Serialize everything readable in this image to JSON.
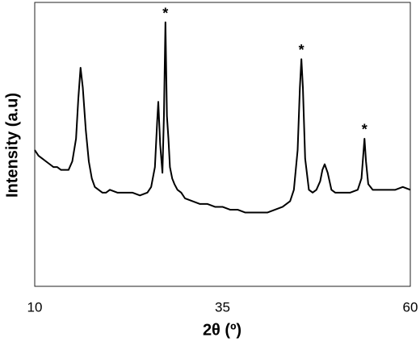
{
  "chart_data": {
    "type": "line",
    "xlabel": "2θ (º)",
    "ylabel": "Intensity (a.u)",
    "x": [
      10,
      10.5,
      11,
      11.5,
      12,
      12.5,
      13,
      13.5,
      14,
      14.5,
      15,
      15.5,
      15.8,
      16.1,
      16.4,
      16.8,
      17.2,
      17.6,
      18,
      18.5,
      19,
      19.5,
      20,
      21,
      22,
      23,
      24,
      25,
      25.5,
      26,
      26.3,
      26.45,
      26.7,
      27,
      27.2,
      27.4,
      27.6,
      27.8,
      28,
      28.3,
      28.6,
      29,
      29.5,
      30,
      31,
      32,
      33,
      34,
      35,
      36,
      37,
      38,
      39,
      40,
      41,
      42,
      43,
      44,
      44.5,
      45,
      45.3,
      45.5,
      45.7,
      46,
      46.5,
      47,
      47.5,
      48,
      48.3,
      48.6,
      49,
      49.5,
      50,
      51,
      52,
      53,
      53.5,
      53.7,
      53.9,
      54.1,
      54.4,
      55,
      56,
      57,
      58,
      59,
      60
    ],
    "values": [
      48,
      46,
      45,
      44,
      43,
      42,
      42,
      41,
      41,
      41,
      44,
      52,
      66,
      77,
      70,
      55,
      44,
      38,
      35,
      34,
      33,
      33,
      34,
      33,
      33,
      33,
      32,
      33,
      35,
      42,
      58,
      65,
      50,
      40,
      60,
      93,
      60,
      52,
      42,
      38,
      36,
      34,
      33,
      31,
      30,
      29,
      29,
      28,
      28,
      27,
      27,
      26,
      26,
      26,
      26,
      27,
      28,
      30,
      34,
      48,
      70,
      80,
      70,
      45,
      34,
      33,
      34,
      37,
      41,
      43,
      40,
      34,
      33,
      33,
      33,
      34,
      38,
      45,
      52,
      44,
      36,
      34,
      34,
      34,
      34,
      35,
      34
    ],
    "color": "#000000",
    "xlim": [
      10,
      60
    ],
    "xticks": [
      10,
      35,
      60
    ],
    "ylim": [
      0,
      100
    ],
    "annotations": [
      {
        "text": "*",
        "x": 27.4,
        "y": 93
      },
      {
        "text": "*",
        "x": 45.5,
        "y": 80
      },
      {
        "text": "*",
        "x": 53.9,
        "y": 52
      }
    ]
  }
}
